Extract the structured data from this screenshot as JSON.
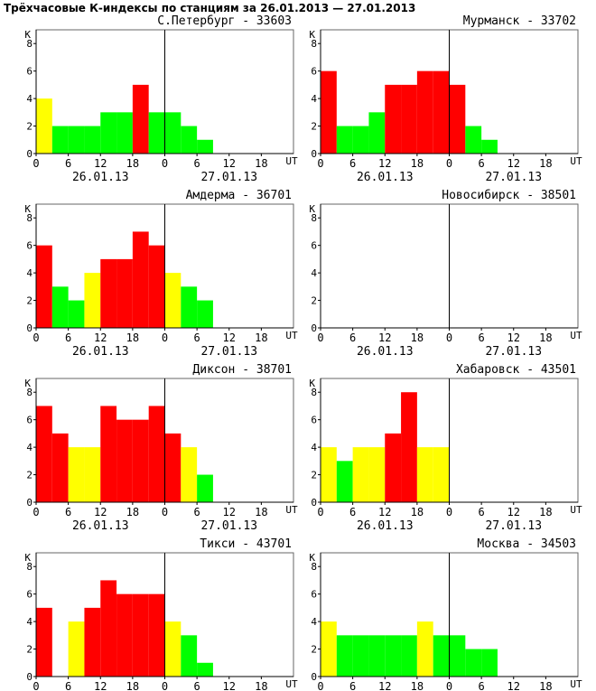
{
  "page_title": "Трёхчасовые К-индексы по станциям за 26.01.2013 — 27.01.2013",
  "colors": {
    "green": "#00ff00",
    "yellow": "#ffff00",
    "red": "#ff0000",
    "axis": "#000000",
    "border": "#666666"
  },
  "chart_data": [
    {
      "type": "bar",
      "title": "С.Петербург - 33603",
      "ylabel": "К",
      "xlabel": "UT",
      "ylim": [
        0,
        9
      ],
      "yticks": [
        "0",
        "2",
        "4",
        "6",
        "8"
      ],
      "xticks": [
        "0",
        "6",
        "12",
        "18",
        "0",
        "6",
        "12",
        "18"
      ],
      "date_labels": [
        "26.01.13",
        "27.01.13"
      ],
      "values": [
        4,
        2,
        2,
        2,
        3,
        3,
        5,
        3,
        3,
        2,
        1,
        null,
        null,
        null,
        null,
        null
      ],
      "colors": [
        "yellow",
        "green",
        "green",
        "green",
        "green",
        "green",
        "red",
        "green",
        "green",
        "green",
        "green",
        null,
        null,
        null,
        null,
        null
      ]
    },
    {
      "type": "bar",
      "title": "Мурманск - 33702",
      "ylabel": "К",
      "xlabel": "UT",
      "ylim": [
        0,
        9
      ],
      "yticks": [
        "0",
        "2",
        "4",
        "6",
        "8"
      ],
      "xticks": [
        "0",
        "6",
        "12",
        "18",
        "0",
        "6",
        "12",
        "18"
      ],
      "date_labels": [
        "26.01.13",
        "27.01.13"
      ],
      "values": [
        6,
        2,
        2,
        3,
        5,
        5,
        6,
        6,
        5,
        2,
        1,
        null,
        null,
        null,
        null,
        null
      ],
      "colors": [
        "red",
        "green",
        "green",
        "green",
        "red",
        "red",
        "red",
        "red",
        "red",
        "green",
        "green",
        null,
        null,
        null,
        null,
        null
      ]
    },
    {
      "type": "bar",
      "title": "Амдерма - 36701",
      "ylabel": "К",
      "xlabel": "UT",
      "ylim": [
        0,
        9
      ],
      "yticks": [
        "0",
        "2",
        "4",
        "6",
        "8"
      ],
      "xticks": [
        "0",
        "6",
        "12",
        "18",
        "0",
        "6",
        "12",
        "18"
      ],
      "date_labels": [
        "26.01.13",
        "27.01.13"
      ],
      "values": [
        6,
        3,
        2,
        4,
        5,
        5,
        7,
        6,
        4,
        3,
        2,
        null,
        null,
        null,
        null,
        null
      ],
      "colors": [
        "red",
        "green",
        "green",
        "yellow",
        "red",
        "red",
        "red",
        "red",
        "yellow",
        "green",
        "green",
        null,
        null,
        null,
        null,
        null
      ]
    },
    {
      "type": "bar",
      "title": "Новосибирск - 38501",
      "ylabel": "К",
      "xlabel": "UT",
      "ylim": [
        0,
        9
      ],
      "yticks": [
        "0",
        "2",
        "4",
        "6",
        "8"
      ],
      "xticks": [
        "0",
        "6",
        "12",
        "18",
        "0",
        "6",
        "12",
        "18"
      ],
      "date_labels": [
        "26.01.13",
        "27.01.13"
      ],
      "values": [
        null,
        null,
        null,
        null,
        null,
        null,
        null,
        null,
        null,
        null,
        null,
        null,
        null,
        null,
        null,
        null
      ],
      "colors": [
        null,
        null,
        null,
        null,
        null,
        null,
        null,
        null,
        null,
        null,
        null,
        null,
        null,
        null,
        null,
        null
      ]
    },
    {
      "type": "bar",
      "title": "Диксон - 38701",
      "ylabel": "К",
      "xlabel": "UT",
      "ylim": [
        0,
        9
      ],
      "yticks": [
        "0",
        "2",
        "4",
        "6",
        "8"
      ],
      "xticks": [
        "0",
        "6",
        "12",
        "18",
        "0",
        "6",
        "12",
        "18"
      ],
      "date_labels": [
        "26.01.13",
        "27.01.13"
      ],
      "values": [
        7,
        5,
        4,
        4,
        7,
        6,
        6,
        7,
        5,
        4,
        2,
        null,
        null,
        null,
        null,
        null
      ],
      "colors": [
        "red",
        "red",
        "yellow",
        "yellow",
        "red",
        "red",
        "red",
        "red",
        "red",
        "yellow",
        "green",
        null,
        null,
        null,
        null,
        null
      ]
    },
    {
      "type": "bar",
      "title": "Хабаровск - 43501",
      "ylabel": "К",
      "xlabel": "UT",
      "ylim": [
        0,
        9
      ],
      "yticks": [
        "0",
        "2",
        "4",
        "6",
        "8"
      ],
      "xticks": [
        "0",
        "6",
        "12",
        "18",
        "0",
        "6",
        "12",
        "18"
      ],
      "date_labels": [
        "26.01.13",
        "27.01.13"
      ],
      "values": [
        4,
        3,
        4,
        4,
        5,
        8,
        4,
        4,
        null,
        null,
        null,
        null,
        null,
        null,
        null,
        null
      ],
      "colors": [
        "yellow",
        "green",
        "yellow",
        "yellow",
        "red",
        "red",
        "yellow",
        "yellow",
        null,
        null,
        null,
        null,
        null,
        null,
        null,
        null
      ]
    },
    {
      "type": "bar",
      "title": "Тикси - 43701",
      "ylabel": "К",
      "xlabel": "UT",
      "ylim": [
        0,
        9
      ],
      "yticks": [
        "0",
        "2",
        "4",
        "6",
        "8"
      ],
      "xticks": [
        "0",
        "6",
        "12",
        "18",
        "0",
        "6",
        "12",
        "18"
      ],
      "date_labels": [],
      "values": [
        5,
        null,
        4,
        5,
        7,
        6,
        6,
        6,
        4,
        3,
        1,
        null,
        null,
        null,
        null,
        null
      ],
      "colors": [
        "red",
        null,
        "yellow",
        "red",
        "red",
        "red",
        "red",
        "red",
        "yellow",
        "green",
        "green",
        null,
        null,
        null,
        null,
        null
      ]
    },
    {
      "type": "bar",
      "title": "Москва - 34503",
      "ylabel": "К",
      "xlabel": "UT",
      "ylim": [
        0,
        9
      ],
      "yticks": [
        "0",
        "2",
        "4",
        "6",
        "8"
      ],
      "xticks": [
        "0",
        "6",
        "12",
        "18",
        "0",
        "6",
        "12",
        "18"
      ],
      "date_labels": [],
      "values": [
        4,
        3,
        3,
        3,
        3,
        3,
        4,
        3,
        3,
        2,
        2,
        null,
        null,
        null,
        null,
        null
      ],
      "colors": [
        "yellow",
        "green",
        "green",
        "green",
        "green",
        "green",
        "yellow",
        "green",
        "green",
        "green",
        "green",
        null,
        null,
        null,
        null,
        null
      ]
    }
  ]
}
